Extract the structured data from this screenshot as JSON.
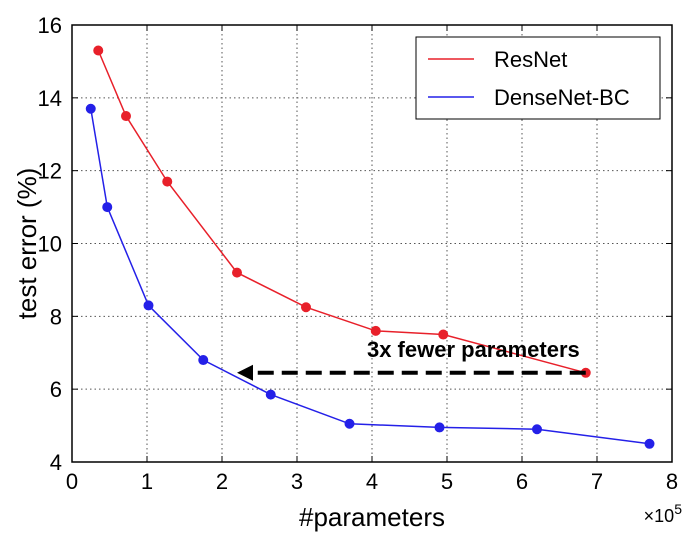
{
  "chart_data": {
    "type": "line",
    "xlabel": "#parameters",
    "ylabel": "test error (%)",
    "x_scale_label": "×10",
    "x_scale_exponent": "5",
    "xlim": [
      0,
      8
    ],
    "ylim": [
      4,
      16
    ],
    "xticks": [
      "0",
      "1",
      "2",
      "3",
      "4",
      "5",
      "6",
      "7",
      "8"
    ],
    "yticks": [
      "4",
      "6",
      "8",
      "10",
      "12",
      "14",
      "16"
    ],
    "grid": true,
    "legend_position": "top-right",
    "series": [
      {
        "name": "ResNet",
        "color": "#e8202a",
        "x": [
          0.35,
          0.72,
          1.27,
          2.2,
          3.12,
          4.05,
          4.95,
          6.85
        ],
        "y": [
          15.3,
          13.5,
          11.7,
          9.2,
          8.25,
          7.6,
          7.5,
          6.45
        ]
      },
      {
        "name": "DenseNet-BC",
        "color": "#2420e8",
        "x": [
          0.25,
          0.47,
          1.02,
          1.75,
          2.65,
          3.7,
          4.9,
          6.2,
          7.7
        ],
        "y": [
          13.7,
          11.0,
          8.3,
          6.8,
          5.85,
          5.05,
          4.95,
          4.9,
          4.5
        ]
      }
    ],
    "annotations": [
      {
        "text": "3x fewer parameters",
        "arrow_from": {
          "x": 6.85,
          "y": 6.45
        },
        "arrow_to": {
          "x": 2.2,
          "y": 6.45
        }
      }
    ]
  }
}
